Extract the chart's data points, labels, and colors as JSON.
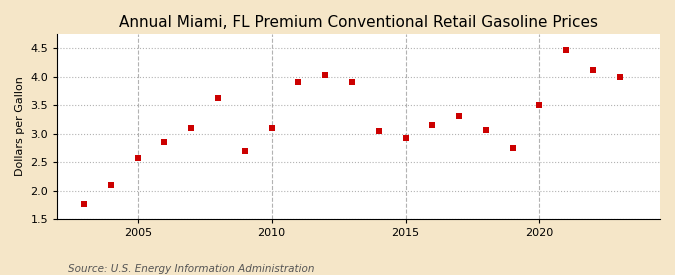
{
  "title": "Annual Miami, FL Premium Conventional Retail Gasoline Prices",
  "ylabel": "Dollars per Gallon",
  "source": "Source: U.S. Energy Information Administration",
  "years": [
    2003,
    2004,
    2005,
    2006,
    2007,
    2008,
    2009,
    2010,
    2011,
    2012,
    2013,
    2014,
    2015,
    2016,
    2017,
    2018,
    2019,
    2020,
    2021,
    2022,
    2023
  ],
  "values": [
    1.76,
    2.1,
    2.57,
    2.86,
    3.1,
    3.63,
    2.69,
    3.1,
    3.91,
    4.03,
    3.9,
    3.04,
    2.92,
    3.15,
    3.3,
    3.07,
    2.75,
    3.51,
    4.47,
    4.12,
    4.0
  ],
  "marker_color": "#cc0000",
  "marker_size": 18,
  "bg_figure": "#f5e6c8",
  "bg_axes": "#ffffff",
  "grid_color": "#aaaaaa",
  "ylim": [
    1.5,
    4.75
  ],
  "yticks": [
    1.5,
    2.0,
    2.5,
    3.0,
    3.5,
    4.0,
    4.5
  ],
  "xlim": [
    2002.0,
    2024.5
  ],
  "xticks": [
    2005,
    2010,
    2015,
    2020
  ],
  "title_fontsize": 11,
  "ylabel_fontsize": 8,
  "source_fontsize": 7.5,
  "tick_fontsize": 8
}
